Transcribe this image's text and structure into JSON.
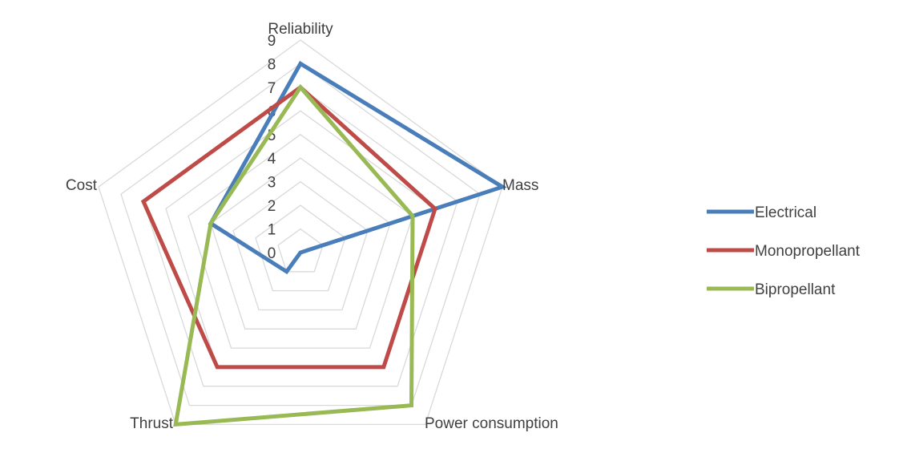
{
  "chart_data": {
    "type": "radar",
    "title": "",
    "axes": [
      "Reliability",
      "Mass",
      "Power consumption",
      "Thrust",
      "Cost"
    ],
    "range": [
      0,
      9
    ],
    "ticks": [
      "0",
      "1",
      "2",
      "3",
      "4",
      "5",
      "6",
      "7",
      "8",
      "9"
    ],
    "grid": true,
    "legend_position": "right",
    "series": [
      {
        "name": "Electrical",
        "color": "#4a7ebb",
        "values": [
          8,
          9,
          0,
          1,
          4
        ]
      },
      {
        "name": "Monopropellant",
        "color": "#be4b48",
        "values": [
          7,
          6,
          6,
          6,
          7
        ]
      },
      {
        "name": "Bipropellant",
        "color": "#98b954",
        "values": [
          7,
          5,
          8,
          9,
          4
        ]
      }
    ]
  }
}
